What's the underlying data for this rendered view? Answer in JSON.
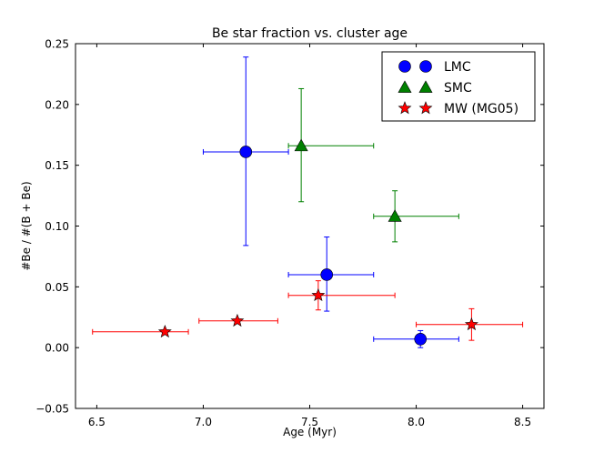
{
  "chart_data": {
    "type": "scatter",
    "title": "Be star fraction vs. cluster age",
    "xlabel": "Age (Myr)",
    "ylabel": "#Be / #(B + Be)",
    "xlim": [
      6.4,
      8.6
    ],
    "ylim": [
      -0.05,
      0.25
    ],
    "xticks": [
      "6.5",
      "7.0",
      "7.5",
      "8.0",
      "8.5"
    ],
    "yticks": [
      "−0.05",
      "0.00",
      "0.05",
      "0.10",
      "0.15",
      "0.20",
      "0.25"
    ],
    "xtick_values": [
      6.5,
      7.0,
      7.5,
      8.0,
      8.5
    ],
    "ytick_values": [
      -0.05,
      0.0,
      0.05,
      0.1,
      0.15,
      0.2,
      0.25
    ],
    "legend_position": "top-right",
    "series": [
      {
        "name": "LMC",
        "marker": "circle",
        "color": "#0000ff",
        "points": [
          {
            "x": 7.2,
            "y": 0.161,
            "xlo": 7.0,
            "xhi": 7.4,
            "ylo": 0.084,
            "yhi": 0.239
          },
          {
            "x": 7.58,
            "y": 0.06,
            "xlo": 7.4,
            "xhi": 7.8,
            "ylo": 0.03,
            "yhi": 0.091
          },
          {
            "x": 8.02,
            "y": 0.007,
            "xlo": 7.8,
            "xhi": 8.2,
            "ylo": 0.0,
            "yhi": 0.014
          }
        ]
      },
      {
        "name": "SMC",
        "marker": "triangle",
        "color": "#008000",
        "points": [
          {
            "x": 7.46,
            "y": 0.166,
            "xlo": 7.4,
            "xhi": 7.8,
            "ylo": 0.12,
            "yhi": 0.213
          },
          {
            "x": 7.9,
            "y": 0.108,
            "xlo": 7.8,
            "xhi": 8.2,
            "ylo": 0.087,
            "yhi": 0.129
          }
        ]
      },
      {
        "name": "MW (MG05)",
        "marker": "star",
        "color": "#ff0000",
        "points": [
          {
            "x": 6.82,
            "y": 0.013,
            "xlo": 6.48,
            "xhi": 6.93,
            "ylo": 0.013,
            "yhi": 0.013
          },
          {
            "x": 7.16,
            "y": 0.022,
            "xlo": 6.98,
            "xhi": 7.35,
            "ylo": 0.022,
            "yhi": 0.022
          },
          {
            "x": 7.54,
            "y": 0.043,
            "xlo": 7.4,
            "xhi": 7.9,
            "ylo": 0.031,
            "yhi": 0.055
          },
          {
            "x": 8.26,
            "y": 0.019,
            "xlo": 8.0,
            "xhi": 8.5,
            "ylo": 0.006,
            "yhi": 0.032
          }
        ]
      }
    ]
  }
}
